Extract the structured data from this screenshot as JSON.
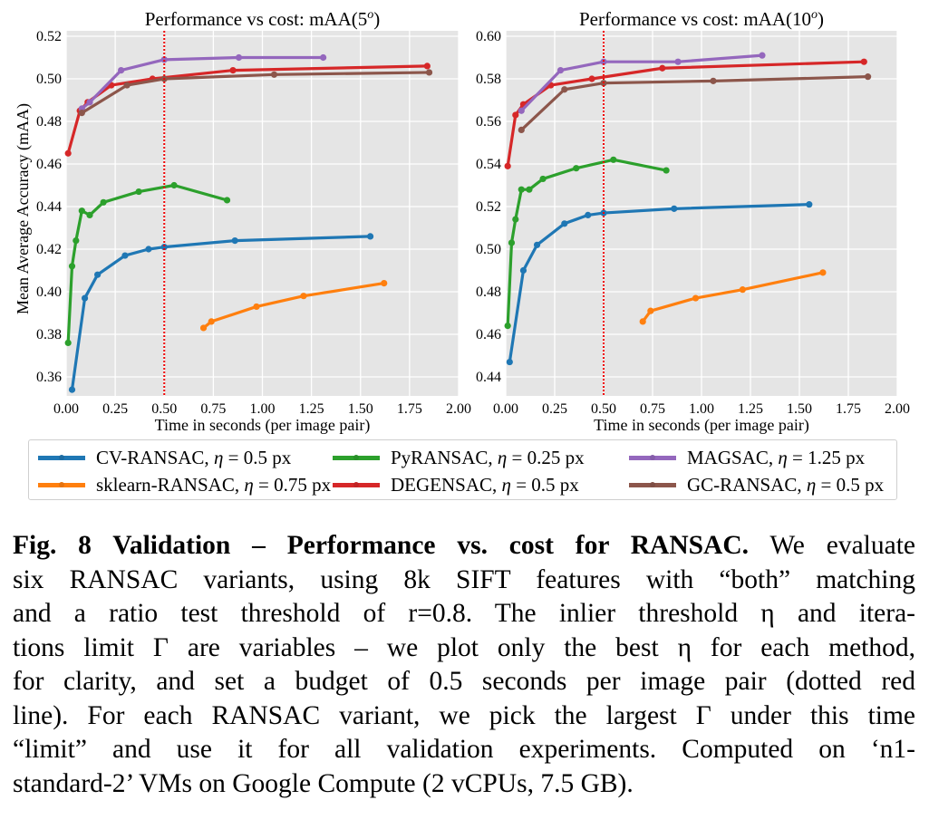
{
  "chart_data": [
    {
      "type": "line",
      "title": "Performance vs cost: mAA(5°)",
      "title_main": "Performance vs cost: mAA(5",
      "title_sup": "o",
      "title_end": ")",
      "xlabel": "Time in seconds (per image pair)",
      "ylabel": "Mean Average Accuracy (mAA)",
      "xlim": [
        0.0,
        2.0
      ],
      "ylim": [
        0.351,
        0.52
      ],
      "xticks": [
        0.0,
        0.25,
        0.5,
        0.75,
        1.0,
        1.25,
        1.5,
        1.75,
        2.0
      ],
      "xtick_labels": [
        "0.00",
        "0.25",
        "0.50",
        "0.75",
        "1.00",
        "1.25",
        "1.50",
        "1.75",
        "2.00"
      ],
      "yticks": [
        0.36,
        0.38,
        0.4,
        0.42,
        0.44,
        0.46,
        0.48,
        0.5,
        0.52
      ],
      "ytick_labels": [
        "0.36",
        "0.38",
        "0.40",
        "0.42",
        "0.44",
        "0.46",
        "0.48",
        "0.50",
        "0.52"
      ],
      "grid": true,
      "budget_line_x": 0.5,
      "series": [
        {
          "name": "CV-RANSAC",
          "x": [
            0.03,
            0.095,
            0.16,
            0.3,
            0.42,
            0.5,
            0.86,
            1.55
          ],
          "y": [
            0.354,
            0.397,
            0.408,
            0.417,
            0.42,
            0.421,
            0.424,
            0.426
          ]
        },
        {
          "name": "sklearn-RANSAC",
          "x": [
            0.7,
            0.74,
            0.97,
            1.21,
            1.62
          ],
          "y": [
            0.383,
            0.386,
            0.393,
            0.398,
            0.404
          ]
        },
        {
          "name": "PyRANSAC",
          "x": [
            0.01,
            0.03,
            0.05,
            0.08,
            0.12,
            0.19,
            0.37,
            0.55,
            0.82
          ],
          "y": [
            0.376,
            0.412,
            0.424,
            0.438,
            0.436,
            0.442,
            0.447,
            0.45,
            0.443
          ]
        },
        {
          "name": "DEGENSAC",
          "x": [
            0.01,
            0.07,
            0.11,
            0.23,
            0.44,
            0.85,
            1.84
          ],
          "y": [
            0.465,
            0.485,
            0.489,
            0.497,
            0.5,
            0.504,
            0.506
          ]
        },
        {
          "name": "MAGSAC",
          "x": [
            0.08,
            0.12,
            0.28,
            0.5,
            0.88,
            1.31
          ],
          "y": [
            0.486,
            0.489,
            0.504,
            0.509,
            0.51,
            0.51
          ]
        },
        {
          "name": "GC-RANSAC",
          "x": [
            0.08,
            0.31,
            0.5,
            1.06,
            1.85
          ],
          "y": [
            0.484,
            0.497,
            0.5,
            0.502,
            0.503
          ]
        }
      ]
    },
    {
      "type": "line",
      "title": "Performance vs cost: mAA(10°)",
      "title_main": "Performance vs cost: mAA(10",
      "title_sup": "o",
      "title_end": ")",
      "xlabel": "Time in seconds (per image pair)",
      "ylabel": "",
      "xlim": [
        0.0,
        2.0
      ],
      "ylim": [
        0.431,
        0.6
      ],
      "xticks": [
        0.0,
        0.25,
        0.5,
        0.75,
        1.0,
        1.25,
        1.5,
        1.75,
        2.0
      ],
      "xtick_labels": [
        "0.00",
        "0.25",
        "0.50",
        "0.75",
        "1.00",
        "1.25",
        "1.50",
        "1.75",
        "2.00"
      ],
      "yticks": [
        0.44,
        0.46,
        0.48,
        0.5,
        0.52,
        0.54,
        0.56,
        0.58,
        0.6
      ],
      "ytick_labels": [
        "0.44",
        "0.46",
        "0.48",
        "0.50",
        "0.52",
        "0.54",
        "0.56",
        "0.58",
        "0.60"
      ],
      "grid": true,
      "budget_line_x": 0.5,
      "series": [
        {
          "name": "CV-RANSAC",
          "x": [
            0.02,
            0.09,
            0.16,
            0.3,
            0.42,
            0.5,
            0.86,
            1.55
          ],
          "y": [
            0.447,
            0.49,
            0.502,
            0.512,
            0.516,
            0.517,
            0.519,
            0.521
          ]
        },
        {
          "name": "sklearn-RANSAC",
          "x": [
            0.7,
            0.74,
            0.97,
            1.21,
            1.62
          ],
          "y": [
            0.466,
            0.471,
            0.477,
            0.481,
            0.489
          ]
        },
        {
          "name": "PyRANSAC",
          "x": [
            0.01,
            0.03,
            0.05,
            0.08,
            0.12,
            0.19,
            0.36,
            0.55,
            0.82
          ],
          "y": [
            0.464,
            0.503,
            0.514,
            0.528,
            0.528,
            0.533,
            0.538,
            0.542,
            0.537
          ]
        },
        {
          "name": "DEGENSAC",
          "x": [
            0.01,
            0.05,
            0.09,
            0.23,
            0.44,
            0.8,
            1.83
          ],
          "y": [
            0.539,
            0.563,
            0.568,
            0.577,
            0.58,
            0.585,
            0.588
          ]
        },
        {
          "name": "MAGSAC",
          "x": [
            0.08,
            0.28,
            0.5,
            0.88,
            1.31
          ],
          "y": [
            0.565,
            0.584,
            0.588,
            0.588,
            0.591
          ]
        },
        {
          "name": "GC-RANSAC",
          "x": [
            0.08,
            0.3,
            0.5,
            1.06,
            1.85
          ],
          "y": [
            0.556,
            0.575,
            0.578,
            0.579,
            0.581
          ]
        }
      ]
    }
  ],
  "colors": {
    "CV-RANSAC": "#1f77b4",
    "sklearn-RANSAC": "#ff7f0e",
    "PyRANSAC": "#2ca02c",
    "DEGENSAC": "#d62728",
    "MAGSAC": "#9467bd",
    "GC-RANSAC": "#8c564b",
    "budget_line": "#ee0000",
    "plot_bg": "#e5e5e5",
    "grid": "#ffffff"
  },
  "legend": {
    "placement": "bottom",
    "items": [
      {
        "name": "CV-RANSAC",
        "label": "CV-RANSAC, ",
        "eta": "η",
        "value": " = 0.5 px"
      },
      {
        "name": "PyRANSAC",
        "label": "PyRANSAC, ",
        "eta": "η",
        "value": " = 0.25 px"
      },
      {
        "name": "MAGSAC",
        "label": "MAGSAC, ",
        "eta": "η",
        "value": " = 1.25 px"
      },
      {
        "name": "sklearn-RANSAC",
        "label": "sklearn-RANSAC, ",
        "eta": "η",
        "value": " = 0.75 px"
      },
      {
        "name": "DEGENSAC",
        "label": "DEGENSAC, ",
        "eta": "η",
        "value": " = 0.5 px"
      },
      {
        "name": "GC-RANSAC",
        "label": "GC-RANSAC, ",
        "eta": "η",
        "value": " = 0.5 px"
      }
    ]
  },
  "caption": {
    "label": "Fig. 8  Validation – Performance vs. cost for RANSAC.",
    "lines": [
      " We evaluate",
      "six RANSAC variants, using 8k SIFT features with “both” matching",
      "and a ratio test threshold of r=0.8. The inlier threshold η and itera-",
      "tions limit Γ are variables – we plot only the best η for each method,",
      "for clarity, and set a budget of 0.5 seconds per image pair (dotted red",
      "line). For each RANSAC variant, we pick the largest Γ under this time",
      "“limit” and use it for all validation experiments. Computed on ‘n1-",
      "standard-2’ VMs on Google Compute (2 vCPUs, 7.5 GB)."
    ]
  }
}
